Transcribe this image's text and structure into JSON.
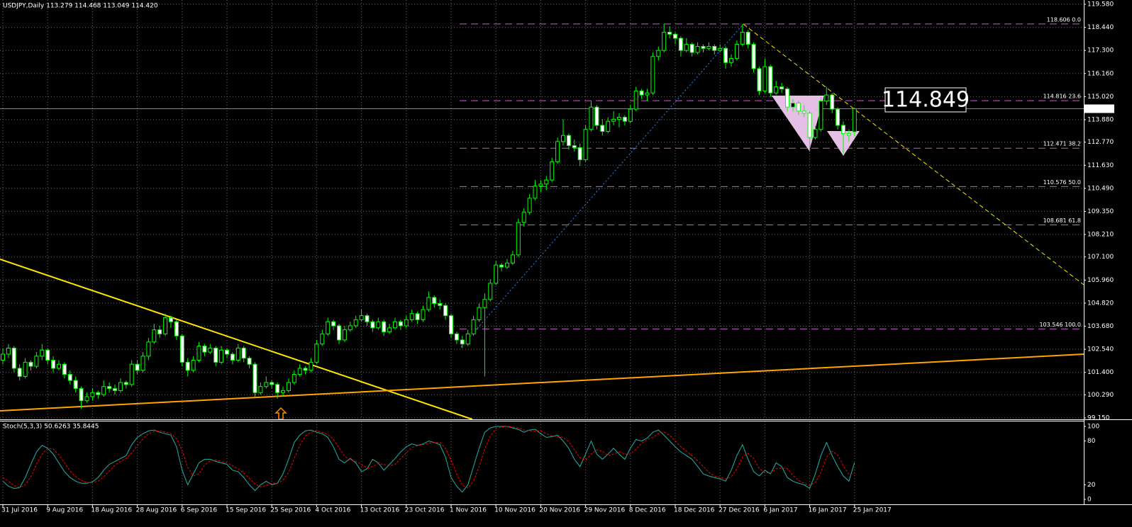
{
  "chart_data": [
    {
      "type": "candlestick",
      "title": "USDJPY,Daily  113.279 114.468 113.049 114.420",
      "up_color": "#000000",
      "down_color": "#ffffff",
      "wick_color": "#00ff00",
      "grid": true,
      "ylim": [
        99.15,
        119.58
      ],
      "yticks": [
        {
          "value": 119.58,
          "label": "119.580"
        },
        {
          "value": 118.44,
          "label": "118.440"
        },
        {
          "value": 117.3,
          "label": "117.300"
        },
        {
          "value": 116.16,
          "label": "116.160"
        },
        {
          "value": 115.02,
          "label": "115.020"
        },
        {
          "value": 113.88,
          "label": "113.880"
        },
        {
          "value": 112.77,
          "label": "112.770"
        },
        {
          "value": 111.63,
          "label": "111.630"
        },
        {
          "value": 110.49,
          "label": "110.490"
        },
        {
          "value": 109.35,
          "label": "109.350"
        },
        {
          "value": 108.21,
          "label": "108.210"
        },
        {
          "value": 107.1,
          "label": "107.100"
        },
        {
          "value": 105.96,
          "label": "105.960"
        },
        {
          "value": 104.82,
          "label": "104.820"
        },
        {
          "value": 103.68,
          "label": "103.680"
        },
        {
          "value": 102.54,
          "label": "102.540"
        },
        {
          "value": 101.4,
          "label": "101.400"
        },
        {
          "value": 100.29,
          "label": "100.290"
        },
        {
          "value": 99.15,
          "label": "99.150"
        }
      ],
      "xlim": [
        0,
        152
      ],
      "xticks": [
        {
          "value": 0,
          "label": "31 Jul 2016"
        },
        {
          "value": 8,
          "label": "9 Aug 2016"
        },
        {
          "value": 16,
          "label": "18 Aug 2016"
        },
        {
          "value": 24,
          "label": "28 Aug 2016"
        },
        {
          "value": 32,
          "label": "6 Sep 2016"
        },
        {
          "value": 40,
          "label": "15 Sep 2016"
        },
        {
          "value": 48,
          "label": "25 Sep 2016"
        },
        {
          "value": 56,
          "label": "4 Oct 2016"
        },
        {
          "value": 64,
          "label": "13 Oct 2016"
        },
        {
          "value": 72,
          "label": "23 Oct 2016"
        },
        {
          "value": 80,
          "label": "1 Nov 2016"
        },
        {
          "value": 88,
          "label": "10 Nov 2016"
        },
        {
          "value": 96,
          "label": "20 Nov 2016"
        },
        {
          "value": 104,
          "label": "29 Nov 2016"
        },
        {
          "value": 112,
          "label": "8 Dec 2016"
        },
        {
          "value": 120,
          "label": "18 Dec 2016"
        },
        {
          "value": 128,
          "label": "27 Dec 2016"
        },
        {
          "value": 136,
          "label": "6 Jan 2017"
        },
        {
          "value": 144,
          "label": "16 Jan 2017"
        },
        {
          "value": 152,
          "label": "25 Jan 2017"
        }
      ],
      "open": [
        102.0,
        102.3,
        102.6,
        101.6,
        101.2,
        101.9,
        101.7,
        102.2,
        102.5,
        102.0,
        101.6,
        101.8,
        101.3,
        101.0,
        100.6,
        100.0,
        100.2,
        100.4,
        100.3,
        100.7,
        100.6,
        100.5,
        100.9,
        100.8,
        101.8,
        101.5,
        102.2,
        102.9,
        103.5,
        103.3,
        104.1,
        103.9,
        103.2,
        101.9,
        101.5,
        102.0,
        102.7,
        102.4,
        102.6,
        101.9,
        102.5,
        102.3,
        102.0,
        102.6,
        102.1,
        101.8,
        100.4,
        100.7,
        100.9,
        100.8,
        100.4,
        100.5,
        100.9,
        101.3,
        101.6,
        101.5,
        101.9,
        102.8,
        103.3,
        103.9,
        103.7,
        103.0,
        103.5,
        103.7,
        104.0,
        104.2,
        103.9,
        103.6,
        103.9,
        103.4,
        103.6,
        103.9,
        103.7,
        104.0,
        104.3,
        104.0,
        104.5,
        105.1,
        104.8,
        104.7,
        104.2,
        103.3,
        103.0,
        102.8,
        103.3,
        104.0,
        104.6,
        105.0,
        105.8,
        106.7,
        106.6,
        106.8,
        107.2,
        108.8,
        109.3,
        110.0,
        110.6,
        110.7,
        110.9,
        111.8,
        112.8,
        113.1,
        112.6,
        112.5,
        111.9,
        113.4,
        114.5,
        113.6,
        113.3,
        113.8,
        113.9,
        114.0,
        113.8,
        114.4,
        115.3,
        115.1,
        115.2,
        117.0,
        117.3,
        118.2,
        118.1,
        117.9,
        117.3,
        117.6,
        117.2,
        117.5,
        117.4,
        117.5,
        117.3,
        117.4,
        116.7,
        116.9,
        117.6,
        118.2,
        117.6,
        116.4,
        115.3,
        116.5,
        115.2,
        115.5,
        115.4,
        114.5,
        114.7,
        114.3,
        114.2,
        113.0,
        113.4,
        114.8,
        115.1,
        114.4,
        113.6,
        113.2,
        113.279
      ],
      "high": [
        102.6,
        102.8,
        102.7,
        101.8,
        102.1,
        102.0,
        102.4,
        102.8,
        102.6,
        102.2,
        102.0,
        101.9,
        101.5,
        101.2,
        100.7,
        100.4,
        100.6,
        100.5,
        101.0,
        100.9,
        100.8,
        101.1,
        101.0,
        102.0,
        102.0,
        102.4,
        103.1,
        103.8,
        103.7,
        104.3,
        104.2,
        104.0,
        103.3,
        102.1,
        102.2,
        102.9,
        102.8,
        102.8,
        102.7,
        102.7,
        102.6,
        102.4,
        102.8,
        102.7,
        102.2,
        101.9,
        100.9,
        101.2,
        101.0,
        100.9,
        100.7,
        101.1,
        101.5,
        101.8,
        101.7,
        102.1,
        103.0,
        103.5,
        104.1,
        104.0,
        103.8,
        103.7,
        103.9,
        104.2,
        104.5,
        104.3,
        104.0,
        104.1,
        104.0,
        103.8,
        104.1,
        104.0,
        104.2,
        104.5,
        104.4,
        104.7,
        105.4,
        105.2,
        105.0,
        104.8,
        104.3,
        103.4,
        103.2,
        103.5,
        104.2,
        104.8,
        105.3,
        106.0,
        106.9,
        106.8,
        107.0,
        107.4,
        109.0,
        109.5,
        110.2,
        110.9,
        110.9,
        111.1,
        112.0,
        113.0,
        113.9,
        113.2,
        112.9,
        112.7,
        113.6,
        114.8,
        114.6,
        113.9,
        114.0,
        114.3,
        114.2,
        114.1,
        114.6,
        115.5,
        115.4,
        115.4,
        117.2,
        117.5,
        118.6,
        118.5,
        118.2,
        118.0,
        117.9,
        117.7,
        117.7,
        117.6,
        117.7,
        117.6,
        117.6,
        117.5,
        117.1,
        117.8,
        118.6,
        118.3,
        117.7,
        116.5,
        116.9,
        116.6,
        115.8,
        115.7,
        115.5,
        114.9,
        114.8,
        114.6,
        114.3,
        113.6,
        115.0,
        115.5,
        115.2,
        114.5,
        113.8,
        113.4,
        114.468
      ],
      "low": [
        101.8,
        102.1,
        101.4,
        101.0,
        101.1,
        101.5,
        101.6,
        102.0,
        101.8,
        101.4,
        101.5,
        101.1,
        100.8,
        100.4,
        99.6,
        99.9,
        100.0,
        100.1,
        100.2,
        100.4,
        100.3,
        100.4,
        100.6,
        100.7,
        101.3,
        101.4,
        102.0,
        102.8,
        103.1,
        103.2,
        103.6,
        103.0,
        101.7,
        101.2,
        101.4,
        101.9,
        102.2,
        102.3,
        101.7,
        101.8,
        102.1,
        101.8,
        101.9,
        101.9,
        101.6,
        100.2,
        100.3,
        100.6,
        100.6,
        100.1,
        100.2,
        100.4,
        100.8,
        101.2,
        101.3,
        101.4,
        101.8,
        102.7,
        103.2,
        103.5,
        102.8,
        102.9,
        103.4,
        103.6,
        103.9,
        103.7,
        103.4,
        103.5,
        103.2,
        103.3,
        103.5,
        103.5,
        103.6,
        103.9,
        103.8,
        103.9,
        104.4,
        104.6,
        104.5,
        104.0,
        103.1,
        102.8,
        102.6,
        102.7,
        103.2,
        103.9,
        101.2,
        104.9,
        105.7,
        106.4,
        106.5,
        106.7,
        107.1,
        108.6,
        109.2,
        109.9,
        110.3,
        110.4,
        110.8,
        111.7,
        112.6,
        112.4,
        112.3,
        111.6,
        111.8,
        113.3,
        113.4,
        113.1,
        113.2,
        113.6,
        113.5,
        113.6,
        113.7,
        114.3,
        114.9,
        114.8,
        115.1,
        116.8,
        117.2,
        117.9,
        117.6,
        117.0,
        117.2,
        117.0,
        117.1,
        117.2,
        117.3,
        117.1,
        117.2,
        116.4,
        116.5,
        116.8,
        117.5,
        117.4,
        116.2,
        115.1,
        115.2,
        115.0,
        115.1,
        115.2,
        114.3,
        114.3,
        114.1,
        114.0,
        112.3,
        112.9,
        113.3,
        114.6,
        114.2,
        113.4,
        112.2,
        112.8,
        113.049
      ],
      "close": [
        102.3,
        102.6,
        101.6,
        101.2,
        101.9,
        101.7,
        102.2,
        102.5,
        102.0,
        101.6,
        101.8,
        101.3,
        101.0,
        100.6,
        100.0,
        100.2,
        100.4,
        100.3,
        100.7,
        100.6,
        100.5,
        100.9,
        100.8,
        101.8,
        101.5,
        102.2,
        102.9,
        103.5,
        103.3,
        104.1,
        103.9,
        103.2,
        101.9,
        101.5,
        102.0,
        102.7,
        102.4,
        102.6,
        101.9,
        102.5,
        102.3,
        102.0,
        102.6,
        102.1,
        101.8,
        100.4,
        100.7,
        100.9,
        100.8,
        100.4,
        100.5,
        100.9,
        101.3,
        101.6,
        101.5,
        101.9,
        102.8,
        103.3,
        103.9,
        103.7,
        103.0,
        103.5,
        103.7,
        104.0,
        104.2,
        103.9,
        103.6,
        103.9,
        103.4,
        103.6,
        103.9,
        103.7,
        104.0,
        104.3,
        104.0,
        104.5,
        105.1,
        104.8,
        104.7,
        104.2,
        103.3,
        103.0,
        102.8,
        103.3,
        104.0,
        104.6,
        105.0,
        105.8,
        106.7,
        106.6,
        106.8,
        107.2,
        108.8,
        109.3,
        110.0,
        110.6,
        110.7,
        110.9,
        111.8,
        112.8,
        113.1,
        112.6,
        112.5,
        111.9,
        113.4,
        114.5,
        113.6,
        113.3,
        113.8,
        113.9,
        114.0,
        113.8,
        114.4,
        115.3,
        115.1,
        115.2,
        117.0,
        117.3,
        118.2,
        118.1,
        117.9,
        117.3,
        117.6,
        117.2,
        117.5,
        117.4,
        117.5,
        117.3,
        117.4,
        116.7,
        116.9,
        117.6,
        118.2,
        117.6,
        116.4,
        115.3,
        116.5,
        115.2,
        115.5,
        115.4,
        114.5,
        114.7,
        114.3,
        114.2,
        113.0,
        113.4,
        114.8,
        115.1,
        114.4,
        113.6,
        113.2,
        113.1,
        114.42
      ],
      "last_price": {
        "value": 114.42,
        "label": "114.420"
      },
      "last_price_color": "#6c8aa8",
      "fibo_color": "#c45ec4",
      "fibo_levels": [
        {
          "value": 118.606,
          "label": "118.606 0.0"
        },
        {
          "value": 114.816,
          "label": "114.816 23.6"
        },
        {
          "value": 112.471,
          "label": "112.471 38.2"
        },
        {
          "value": 110.576,
          "label": "110.576 50.0"
        },
        {
          "value": 108.681,
          "label": "108.681 61.8"
        },
        {
          "value": 103.546,
          "label": "103.546 100.0"
        }
      ],
      "annotation": "114.849"
    },
    {
      "type": "line",
      "title": "Stoch(5,3,3) 50.6263 35.8445",
      "ylim": [
        0,
        100
      ],
      "yticks": [
        100,
        80,
        20,
        0
      ],
      "series": [
        {
          "color": "#20b2aa",
          "dashed": false,
          "values": [
            25,
            18,
            15,
            16,
            30,
            48,
            65,
            74,
            70,
            62,
            50,
            38,
            30,
            25,
            22,
            22,
            24,
            30,
            40,
            48,
            52,
            56,
            60,
            75,
            85,
            90,
            94,
            95,
            92,
            90,
            88,
            72,
            40,
            20,
            35,
            50,
            55,
            55,
            52,
            50,
            48,
            40,
            38,
            30,
            20,
            12,
            20,
            25,
            20,
            22,
            35,
            55,
            78,
            88,
            94,
            95,
            92,
            90,
            85,
            72,
            55,
            50,
            56,
            50,
            38,
            42,
            55,
            50,
            40,
            48,
            56,
            65,
            72,
            76,
            74,
            76,
            80,
            78,
            75,
            58,
            30,
            18,
            10,
            20,
            45,
            70,
            92,
            98,
            100,
            100,
            100,
            98,
            96,
            92,
            95,
            96,
            90,
            85,
            86,
            88,
            80,
            70,
            55,
            45,
            62,
            80,
            62,
            55,
            62,
            70,
            62,
            55,
            70,
            82,
            80,
            84,
            92,
            95,
            88,
            80,
            72,
            65,
            60,
            55,
            45,
            35,
            32,
            30,
            28,
            25,
            40,
            60,
            75,
            55,
            38,
            32,
            40,
            35,
            50,
            45,
            30,
            25,
            22,
            20,
            15,
            35,
            60,
            78,
            60,
            45,
            32,
            25,
            50.6263
          ]
        },
        {
          "color": "#ff0000",
          "dashed": true,
          "values": [
            30,
            25,
            19,
            16,
            20,
            31,
            48,
            62,
            70,
            69,
            61,
            50,
            39,
            31,
            26,
            23,
            23,
            25,
            31,
            39,
            47,
            52,
            56,
            64,
            73,
            83,
            90,
            93,
            94,
            92,
            90,
            83,
            67,
            44,
            32,
            35,
            47,
            53,
            54,
            52,
            50,
            46,
            42,
            36,
            29,
            21,
            17,
            19,
            22,
            22,
            26,
            37,
            56,
            74,
            87,
            92,
            94,
            92,
            89,
            82,
            71,
            59,
            54,
            52,
            48,
            43,
            45,
            49,
            48,
            46,
            48,
            56,
            64,
            71,
            74,
            75,
            77,
            78,
            78,
            70,
            54,
            35,
            19,
            16,
            25,
            45,
            69,
            87,
            97,
            99,
            100,
            99,
            98,
            95,
            94,
            94,
            94,
            90,
            87,
            86,
            85,
            79,
            68,
            57,
            54,
            62,
            68,
            66,
            60,
            62,
            65,
            62,
            62,
            69,
            77,
            82,
            85,
            90,
            92,
            88,
            80,
            72,
            66,
            60,
            53,
            45,
            37,
            32,
            30,
            28,
            31,
            42,
            58,
            63,
            56,
            42,
            37,
            36,
            42,
            43,
            42,
            33,
            26,
            22,
            19,
            23,
            37,
            58,
            66,
            61,
            46,
            34,
            35.8445
          ]
        }
      ]
    }
  ]
}
